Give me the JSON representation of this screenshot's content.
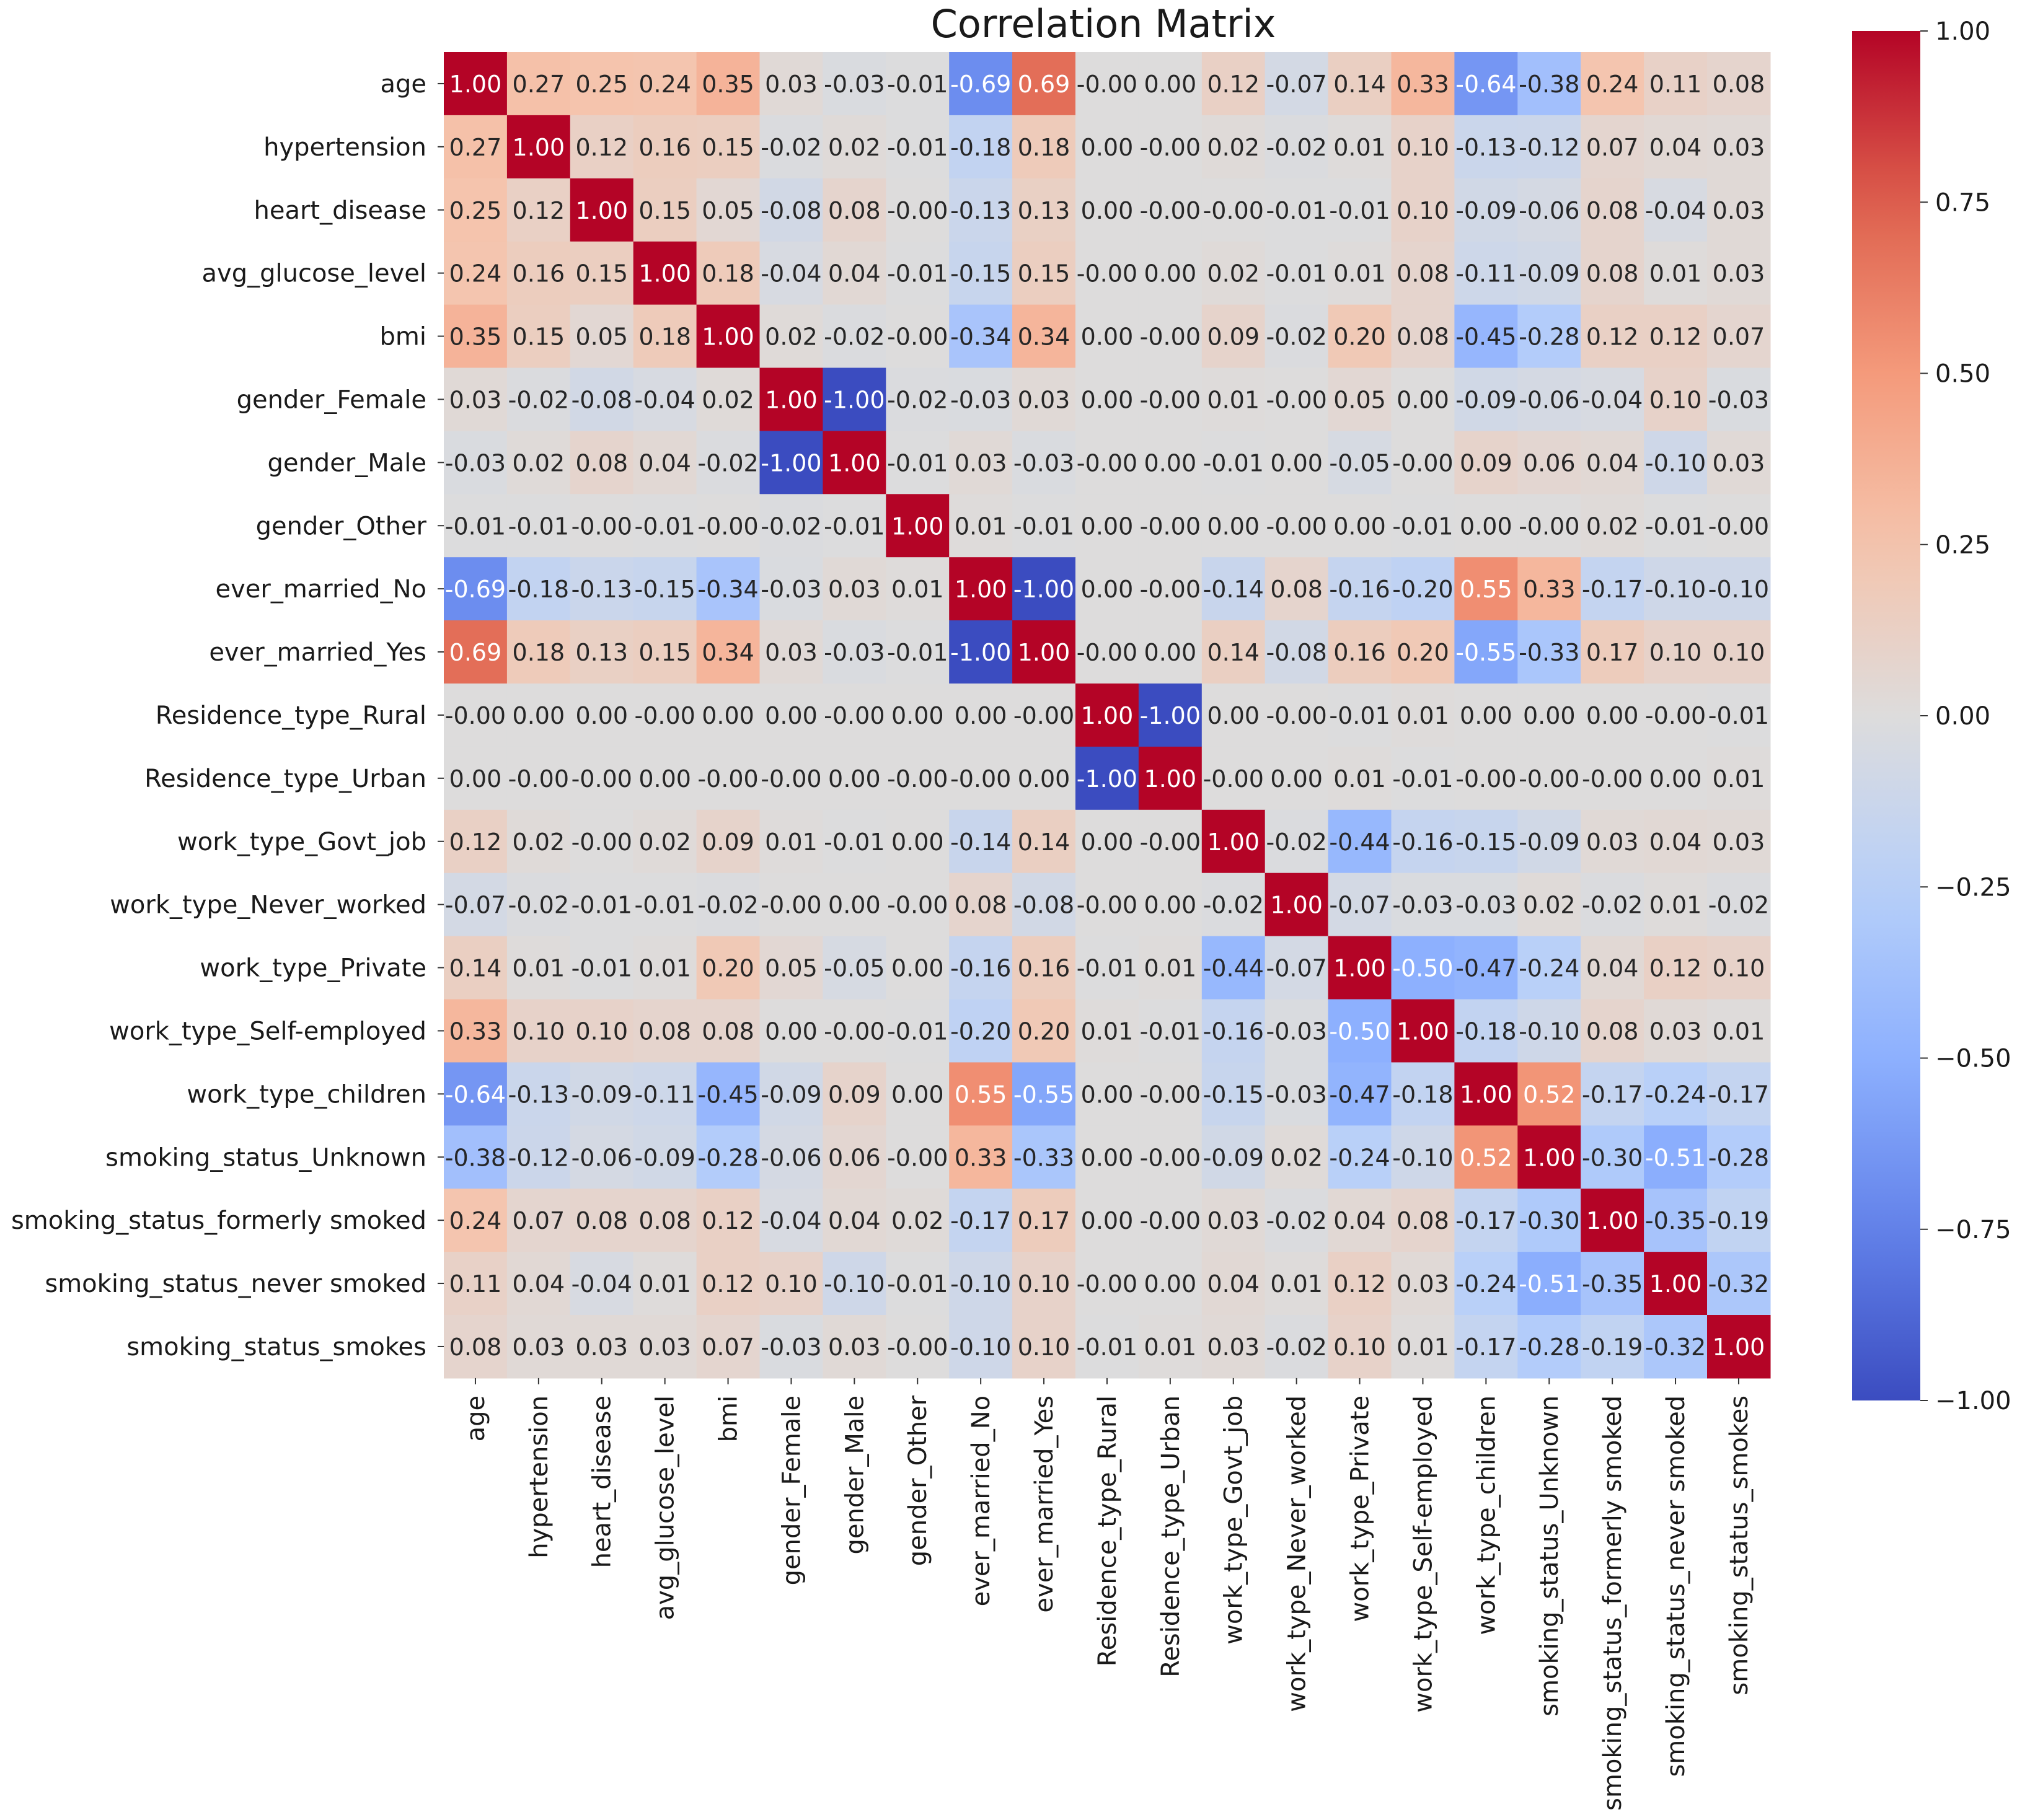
{
  "chart_data": {
    "type": "heatmap",
    "title": "Correlation Matrix",
    "colormap": "coolwarm",
    "vmin": -1.0,
    "vmax": 1.0,
    "value_format": "2 decimals",
    "labels": [
      "age",
      "hypertension",
      "heart_disease",
      "avg_glucose_level",
      "bmi",
      "gender_Female",
      "gender_Male",
      "gender_Other",
      "ever_married_No",
      "ever_married_Yes",
      "Residence_type_Rural",
      "Residence_type_Urban",
      "work_type_Govt_job",
      "work_type_Never_worked",
      "work_type_Private",
      "work_type_Self-employed",
      "work_type_children",
      "smoking_status_Unknown",
      "smoking_status_formerly smoked",
      "smoking_status_never smoked",
      "smoking_status_smokes"
    ],
    "matrix": [
      [
        1.0,
        0.27,
        0.25,
        0.24,
        0.35,
        0.03,
        -0.03,
        -0.01,
        -0.69,
        0.69,
        -0.0,
        0.0,
        0.12,
        -0.07,
        0.14,
        0.33,
        -0.64,
        -0.38,
        0.24,
        0.11,
        0.08
      ],
      [
        0.27,
        1.0,
        0.12,
        0.16,
        0.15,
        -0.02,
        0.02,
        -0.01,
        -0.18,
        0.18,
        0.0,
        -0.0,
        0.02,
        -0.02,
        0.01,
        0.1,
        -0.13,
        -0.12,
        0.07,
        0.04,
        0.03
      ],
      [
        0.25,
        0.12,
        1.0,
        0.15,
        0.05,
        -0.08,
        0.08,
        -0.0,
        -0.13,
        0.13,
        0.0,
        -0.0,
        -0.0,
        -0.01,
        -0.01,
        0.1,
        -0.09,
        -0.06,
        0.08,
        -0.04,
        0.03
      ],
      [
        0.24,
        0.16,
        0.15,
        1.0,
        0.18,
        -0.04,
        0.04,
        -0.01,
        -0.15,
        0.15,
        -0.0,
        0.0,
        0.02,
        -0.01,
        0.01,
        0.08,
        -0.11,
        -0.09,
        0.08,
        0.01,
        0.03
      ],
      [
        0.35,
        0.15,
        0.05,
        0.18,
        1.0,
        0.02,
        -0.02,
        -0.0,
        -0.34,
        0.34,
        0.0,
        -0.0,
        0.09,
        -0.02,
        0.2,
        0.08,
        -0.45,
        -0.28,
        0.12,
        0.12,
        0.07
      ],
      [
        0.03,
        -0.02,
        -0.08,
        -0.04,
        0.02,
        1.0,
        -1.0,
        -0.02,
        -0.03,
        0.03,
        0.0,
        -0.0,
        0.01,
        -0.0,
        0.05,
        0.0,
        -0.09,
        -0.06,
        -0.04,
        0.1,
        -0.03
      ],
      [
        -0.03,
        0.02,
        0.08,
        0.04,
        -0.02,
        -1.0,
        1.0,
        -0.01,
        0.03,
        -0.03,
        -0.0,
        0.0,
        -0.01,
        0.0,
        -0.05,
        -0.0,
        0.09,
        0.06,
        0.04,
        -0.1,
        0.03
      ],
      [
        -0.01,
        -0.01,
        -0.0,
        -0.01,
        -0.0,
        -0.02,
        -0.01,
        1.0,
        0.01,
        -0.01,
        0.0,
        -0.0,
        0.0,
        -0.0,
        0.0,
        -0.01,
        0.0,
        -0.0,
        0.02,
        -0.01,
        -0.0
      ],
      [
        -0.69,
        -0.18,
        -0.13,
        -0.15,
        -0.34,
        -0.03,
        0.03,
        0.01,
        1.0,
        -1.0,
        0.0,
        -0.0,
        -0.14,
        0.08,
        -0.16,
        -0.2,
        0.55,
        0.33,
        -0.17,
        -0.1,
        -0.1
      ],
      [
        0.69,
        0.18,
        0.13,
        0.15,
        0.34,
        0.03,
        -0.03,
        -0.01,
        -1.0,
        1.0,
        -0.0,
        0.0,
        0.14,
        -0.08,
        0.16,
        0.2,
        -0.55,
        -0.33,
        0.17,
        0.1,
        0.1
      ],
      [
        -0.0,
        0.0,
        0.0,
        -0.0,
        0.0,
        0.0,
        -0.0,
        0.0,
        0.0,
        -0.0,
        1.0,
        -1.0,
        0.0,
        -0.0,
        -0.01,
        0.01,
        0.0,
        0.0,
        0.0,
        -0.0,
        -0.01
      ],
      [
        0.0,
        -0.0,
        -0.0,
        0.0,
        -0.0,
        -0.0,
        0.0,
        -0.0,
        -0.0,
        0.0,
        -1.0,
        1.0,
        -0.0,
        0.0,
        0.01,
        -0.01,
        -0.0,
        -0.0,
        -0.0,
        0.0,
        0.01
      ],
      [
        0.12,
        0.02,
        -0.0,
        0.02,
        0.09,
        0.01,
        -0.01,
        0.0,
        -0.14,
        0.14,
        0.0,
        -0.0,
        1.0,
        -0.02,
        -0.44,
        -0.16,
        -0.15,
        -0.09,
        0.03,
        0.04,
        0.03
      ],
      [
        -0.07,
        -0.02,
        -0.01,
        -0.01,
        -0.02,
        -0.0,
        0.0,
        -0.0,
        0.08,
        -0.08,
        -0.0,
        0.0,
        -0.02,
        1.0,
        -0.07,
        -0.03,
        -0.03,
        0.02,
        -0.02,
        0.01,
        -0.02
      ],
      [
        0.14,
        0.01,
        -0.01,
        0.01,
        0.2,
        0.05,
        -0.05,
        0.0,
        -0.16,
        0.16,
        -0.01,
        0.01,
        -0.44,
        -0.07,
        1.0,
        -0.5,
        -0.47,
        -0.24,
        0.04,
        0.12,
        0.1
      ],
      [
        0.33,
        0.1,
        0.1,
        0.08,
        0.08,
        0.0,
        -0.0,
        -0.01,
        -0.2,
        0.2,
        0.01,
        -0.01,
        -0.16,
        -0.03,
        -0.5,
        1.0,
        -0.18,
        -0.1,
        0.08,
        0.03,
        0.01
      ],
      [
        -0.64,
        -0.13,
        -0.09,
        -0.11,
        -0.45,
        -0.09,
        0.09,
        0.0,
        0.55,
        -0.55,
        0.0,
        -0.0,
        -0.15,
        -0.03,
        -0.47,
        -0.18,
        1.0,
        0.52,
        -0.17,
        -0.24,
        -0.17
      ],
      [
        -0.38,
        -0.12,
        -0.06,
        -0.09,
        -0.28,
        -0.06,
        0.06,
        -0.0,
        0.33,
        -0.33,
        0.0,
        -0.0,
        -0.09,
        0.02,
        -0.24,
        -0.1,
        0.52,
        1.0,
        -0.3,
        -0.51,
        -0.28
      ],
      [
        0.24,
        0.07,
        0.08,
        0.08,
        0.12,
        -0.04,
        0.04,
        0.02,
        -0.17,
        0.17,
        0.0,
        -0.0,
        0.03,
        -0.02,
        0.04,
        0.08,
        -0.17,
        -0.3,
        1.0,
        -0.35,
        -0.19
      ],
      [
        0.11,
        0.04,
        -0.04,
        0.01,
        0.12,
        0.1,
        -0.1,
        -0.01,
        -0.1,
        0.1,
        -0.0,
        0.0,
        0.04,
        0.01,
        0.12,
        0.03,
        -0.24,
        -0.51,
        -0.35,
        1.0,
        -0.32
      ],
      [
        0.08,
        0.03,
        0.03,
        0.03,
        0.07,
        -0.03,
        0.03,
        -0.0,
        -0.1,
        0.1,
        -0.01,
        0.01,
        0.03,
        -0.02,
        0.1,
        0.01,
        -0.17,
        -0.28,
        -0.19,
        -0.32,
        1.0
      ]
    ],
    "colorbar": {
      "ticks": [
        1.0,
        0.75,
        0.5,
        0.25,
        0.0,
        -0.25,
        -0.5,
        -0.75,
        -1.0
      ],
      "tick_labels": [
        "1.00",
        "0.75",
        "0.50",
        "0.25",
        "0.00",
        "−0.25",
        "−0.50",
        "−0.75",
        "−1.00"
      ]
    }
  }
}
